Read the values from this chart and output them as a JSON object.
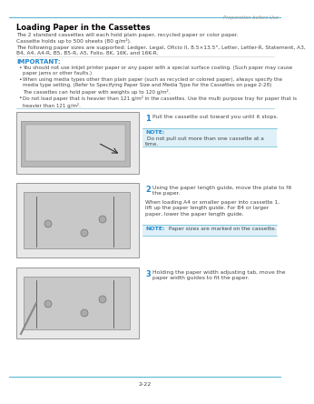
{
  "bg_color": "#ffffff",
  "header_line_color": "#5bb8d4",
  "header_text": "Preparation before Use",
  "header_text_color": "#999999",
  "title": "Loading Paper in the Cassettes",
  "title_color": "#000000",
  "body_text_color": "#444444",
  "important_label_color": "#2288cc",
  "note_label_color": "#2288cc",
  "note_bg_color": "#dff0f8",
  "note_border_color": "#5bb8d4",
  "step_number_color": "#2288cc",
  "footer_line_color": "#5bb8d4",
  "footer_text": "2-22",
  "para1_line1": "The 2 standard cassettes will each hold plain paper, recycled paper or color paper.",
  "para1_line2": "Cassette holds up to 500 sheets (80 g/m²).",
  "para2_line1": "The following paper sizes are supported: Ledger, Legal, Oficio II, 8.5×13.5\", Letter, Letter-R, Statement, A3,",
  "para2_line2": "B4, A4, A4-R, B5, B5-R, A5, Folio, 8K, 16K, and 16K-R.",
  "important_label": "IMPORTANT:",
  "bullet1": "You should not use inkjet printer paper or any paper with a special surface coating. (Such paper may cause\npaper jams or other faults.)",
  "bullet2": "When using media types other than plain paper (such as recycled or colored paper), always specify the\nmedia type setting. (Refer to Specifying Paper Size and Media Type for the Cassettes on page 2-28)\nThe cassettes can hold paper with weights up to 120 g/m².",
  "bullet3": "Do not load paper that is heavier than 121 g/m² in the cassettes. Use the multi purpose tray for paper that is\nheavier than 121 g/m².",
  "step1_num": "1",
  "step1_text": "Pull the cassette out toward you until it stops.",
  "note1_label": "NOTE:",
  "note1_text": " Do not pull out more than one cassette at a\ntime.",
  "step2_num": "2",
  "step2_text": "Using the paper length guide, move the plate to fit\nthe paper.",
  "step2_detail": "When loading A4 or smaller paper into cassette 1,\nlift up the paper length guide. For B4 or larger\npaper, lower the paper length guide.",
  "note2_label": "NOTE:",
  "note2_text": " Paper sizes are marked on the cassette.",
  "step3_num": "3",
  "step3_text": "Holding the paper width adjusting tab, move the\npaper width guides to fit the paper.",
  "img_border_color": "#888888",
  "img_bg_color": "#e8e8e8",
  "img1_inner_color": "#c8c8c8",
  "img2_inner_color": "#c8c8c8",
  "img3_inner_color": "#c8c8c8"
}
